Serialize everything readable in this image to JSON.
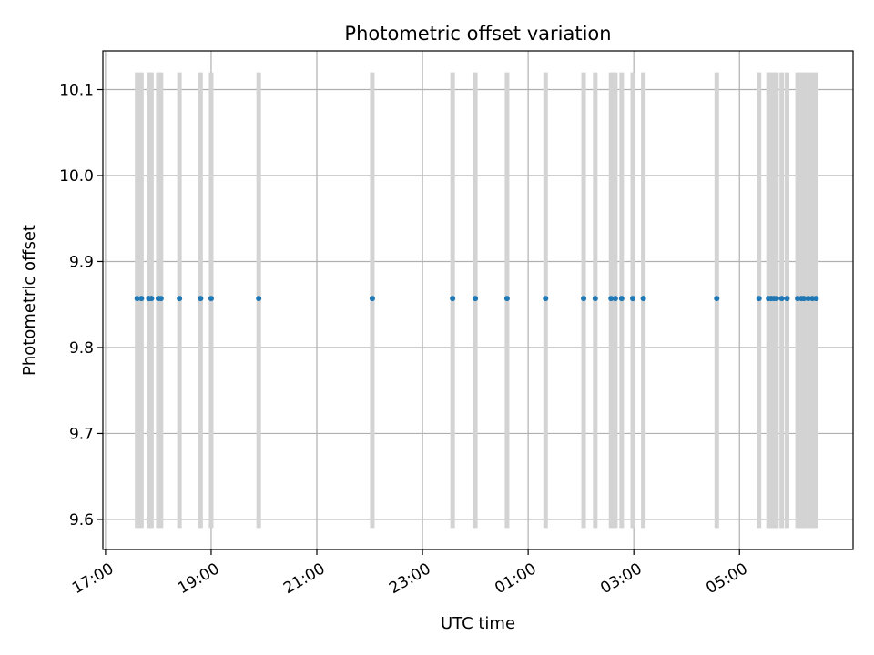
{
  "chart_data": {
    "type": "scatter",
    "title": "Photometric offset variation",
    "xlabel": "UTC time",
    "ylabel": "Photometric offset",
    "x_ticks": [
      "17:00",
      "19:00",
      "21:00",
      "23:00",
      "01:00",
      "03:00",
      "05:00"
    ],
    "y_ticks": [
      "9.6",
      "9.7",
      "9.8",
      "9.9",
      "10.0",
      "10.1"
    ],
    "xlim_hours": [
      16.95,
      31.15
    ],
    "ylim": [
      9.565,
      10.145
    ],
    "grid": true,
    "error_bar_range": [
      9.59,
      10.12
    ],
    "colors": {
      "points": "#1f77b4",
      "error_bars": "#d3d3d3",
      "grid": "#b0b0b0"
    },
    "points": [
      {
        "t": 17.6,
        "y": 9.857
      },
      {
        "t": 17.68,
        "y": 9.857
      },
      {
        "t": 17.82,
        "y": 9.857
      },
      {
        "t": 17.87,
        "y": 9.857
      },
      {
        "t": 18.0,
        "y": 9.857
      },
      {
        "t": 18.05,
        "y": 9.857
      },
      {
        "t": 18.4,
        "y": 9.857
      },
      {
        "t": 18.8,
        "y": 9.857
      },
      {
        "t": 19.0,
        "y": 9.857
      },
      {
        "t": 19.9,
        "y": 9.857
      },
      {
        "t": 22.05,
        "y": 9.857
      },
      {
        "t": 23.57,
        "y": 9.857
      },
      {
        "t": 24.0,
        "y": 9.857
      },
      {
        "t": 24.6,
        "y": 9.857
      },
      {
        "t": 25.33,
        "y": 9.857
      },
      {
        "t": 26.05,
        "y": 9.857
      },
      {
        "t": 26.27,
        "y": 9.857
      },
      {
        "t": 26.57,
        "y": 9.857
      },
      {
        "t": 26.65,
        "y": 9.857
      },
      {
        "t": 26.77,
        "y": 9.857
      },
      {
        "t": 26.98,
        "y": 9.857
      },
      {
        "t": 27.18,
        "y": 9.857
      },
      {
        "t": 28.57,
        "y": 9.857
      },
      {
        "t": 29.37,
        "y": 9.857
      },
      {
        "t": 29.55,
        "y": 9.857
      },
      {
        "t": 29.6,
        "y": 9.857
      },
      {
        "t": 29.65,
        "y": 9.857
      },
      {
        "t": 29.7,
        "y": 9.857
      },
      {
        "t": 29.8,
        "y": 9.857
      },
      {
        "t": 29.9,
        "y": 9.857
      },
      {
        "t": 30.1,
        "y": 9.857
      },
      {
        "t": 30.17,
        "y": 9.857
      },
      {
        "t": 30.22,
        "y": 9.857
      },
      {
        "t": 30.3,
        "y": 9.857
      },
      {
        "t": 30.38,
        "y": 9.857
      },
      {
        "t": 30.45,
        "y": 9.857
      }
    ]
  }
}
